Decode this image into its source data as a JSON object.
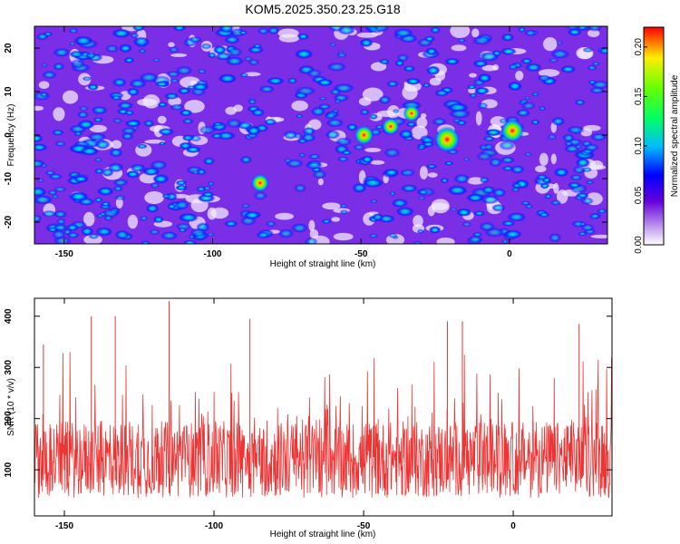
{
  "title": "KOM5.2025.350.23.25.G18",
  "chart_data": [
    {
      "type": "heatmap",
      "xlabel": "Height of straight line (km)",
      "ylabel": "Frequency (Hz)",
      "xlim": [
        -160,
        33
      ],
      "ylim": [
        -25,
        25
      ],
      "xticks": [
        -150,
        -100,
        -50,
        0
      ],
      "yticks": [
        20,
        10,
        0,
        -10,
        -20
      ],
      "colorbar": {
        "label": "Normalized spectral amplitude",
        "range": [
          0,
          0.22
        ],
        "ticks": [
          "0.00",
          "0.05",
          "0.10",
          "0.15",
          "0.20"
        ]
      },
      "hotspots": [
        {
          "x": -21,
          "y": -1,
          "value": 0.21
        },
        {
          "x": 1,
          "y": 1,
          "value": 0.17
        },
        {
          "x": -49,
          "y": 0,
          "value": 0.12
        },
        {
          "x": -40,
          "y": 2,
          "value": 0.09
        },
        {
          "x": -84,
          "y": -11,
          "value": 0.1
        },
        {
          "x": -33,
          "y": 5,
          "value": 0.08
        }
      ]
    },
    {
      "type": "line",
      "xlabel": "Height of straight line (km)",
      "ylabel": "SNR (10 * v/v)",
      "xlim": [
        -160,
        33
      ],
      "ylim": [
        10,
        435
      ],
      "xticks": [
        -150,
        -100,
        -50,
        0
      ],
      "yticks": [
        100,
        200,
        300,
        400
      ],
      "series": [
        {
          "name": "SNR",
          "color": "#ee3333",
          "baseline": 120,
          "peaks": [
            {
              "x": -157,
              "y": 345
            },
            {
              "x": -141,
              "y": 400
            },
            {
              "x": -133,
              "y": 400
            },
            {
              "x": -115,
              "y": 430
            },
            {
              "x": -88,
              "y": 395
            },
            {
              "x": -22,
              "y": 390
            },
            {
              "x": -17,
              "y": 390
            },
            {
              "x": 22,
              "y": 385
            }
          ]
        }
      ]
    }
  ]
}
